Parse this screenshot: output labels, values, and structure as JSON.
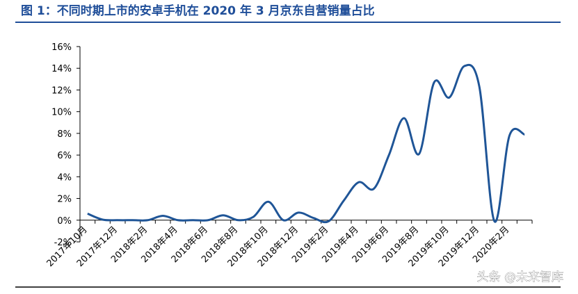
{
  "chart_data": {
    "type": "line",
    "title": "图 1：不同时期上市的安卓手机在 2020 年 3 月京东自营销量占比",
    "watermark": "头条 @未来智库",
    "categories": [
      "2017年10月",
      null,
      "2017年12月",
      null,
      "2018年2月",
      null,
      "2018年4月",
      null,
      "2018年6月",
      null,
      "2018年8月",
      null,
      "2018年10月",
      null,
      "2018年12月",
      null,
      "2019年2月",
      null,
      "2019年4月",
      null,
      "2019年6月",
      null,
      "2019年8月",
      null,
      "2019年10月",
      null,
      "2019年12月",
      null,
      "2020年2月",
      null
    ],
    "series": [
      {
        "name": "销量占比",
        "color": "#1f5597",
        "values": [
          0.6,
          0.05,
          0,
          0,
          0,
          0.4,
          0,
          0,
          0,
          0.45,
          0,
          0.3,
          1.7,
          0,
          0.7,
          0.2,
          -0.1,
          1.8,
          3.5,
          2.9,
          6.0,
          9.4,
          6.1,
          12.7,
          11.3,
          14.2,
          12.3,
          -0.1,
          7.8,
          7.9
        ]
      }
    ],
    "ylim": [
      -2,
      16
    ],
    "yticks": [
      {
        "value": -2,
        "label": "-2%"
      },
      {
        "value": 0,
        "label": "0%"
      },
      {
        "value": 2,
        "label": "2%"
      },
      {
        "value": 4,
        "label": "4%"
      },
      {
        "value": 6,
        "label": "6%"
      },
      {
        "value": 8,
        "label": "8%"
      },
      {
        "value": 10,
        "label": "10%"
      },
      {
        "value": 12,
        "label": "12%"
      },
      {
        "value": 14,
        "label": "14%"
      },
      {
        "value": 16,
        "label": "16%"
      }
    ],
    "grid": false
  }
}
